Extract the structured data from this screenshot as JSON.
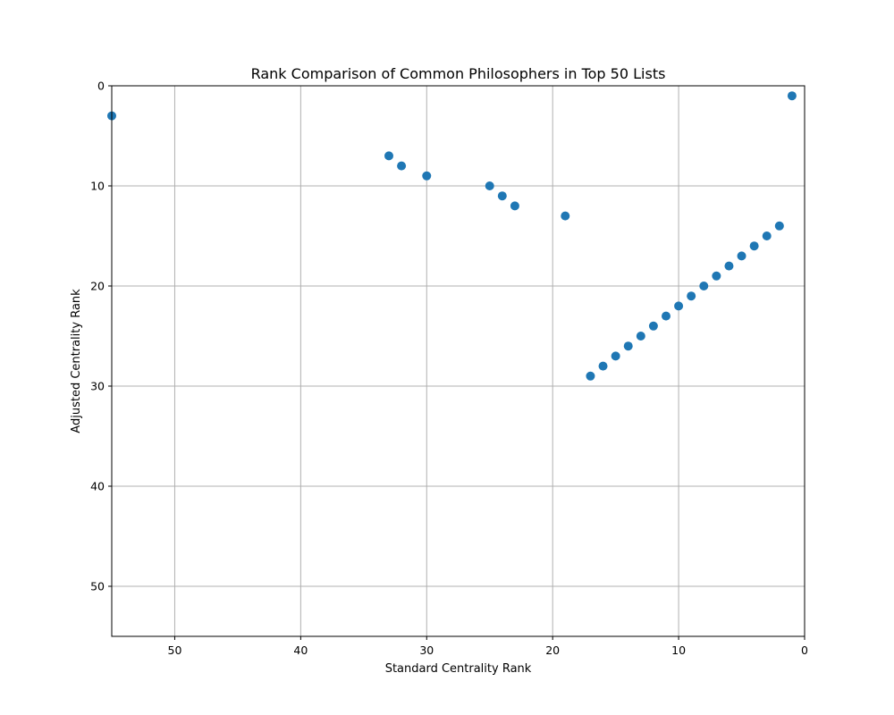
{
  "chart_data": {
    "type": "scatter",
    "title": "Rank Comparison of Common Philosophers in Top 50 Lists",
    "xlabel": "Standard Centrality Rank",
    "ylabel": "Adjusted Centrality Rank",
    "xlim": [
      55,
      0
    ],
    "ylim": [
      55,
      0
    ],
    "x_inverted": true,
    "y_inverted": true,
    "xticks": [
      50,
      40,
      30,
      20,
      10,
      0
    ],
    "yticks": [
      0,
      10,
      20,
      30,
      40,
      50
    ],
    "grid": true,
    "color": "#1f77b4",
    "points": [
      {
        "x": 55,
        "y": 3
      },
      {
        "x": 33,
        "y": 7
      },
      {
        "x": 32,
        "y": 8
      },
      {
        "x": 30,
        "y": 9
      },
      {
        "x": 25,
        "y": 10
      },
      {
        "x": 24,
        "y": 11
      },
      {
        "x": 23,
        "y": 12
      },
      {
        "x": 19,
        "y": 13
      },
      {
        "x": 1,
        "y": 1
      },
      {
        "x": 2,
        "y": 14
      },
      {
        "x": 3,
        "y": 15
      },
      {
        "x": 4,
        "y": 16
      },
      {
        "x": 5,
        "y": 17
      },
      {
        "x": 6,
        "y": 18
      },
      {
        "x": 7,
        "y": 19
      },
      {
        "x": 8,
        "y": 20
      },
      {
        "x": 9,
        "y": 21
      },
      {
        "x": 10,
        "y": 22
      },
      {
        "x": 11,
        "y": 23
      },
      {
        "x": 12,
        "y": 24
      },
      {
        "x": 13,
        "y": 25
      },
      {
        "x": 14,
        "y": 26
      },
      {
        "x": 15,
        "y": 27
      },
      {
        "x": 16,
        "y": 28
      },
      {
        "x": 17,
        "y": 29
      }
    ]
  }
}
